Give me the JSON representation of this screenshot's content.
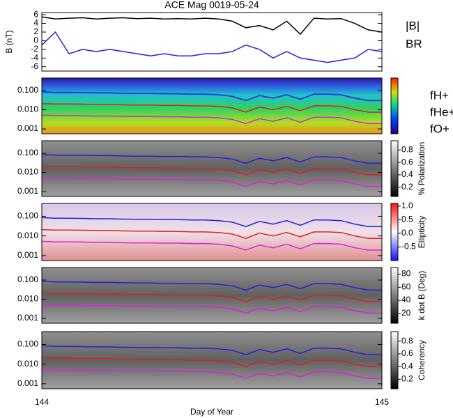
{
  "chart_data": [
    {
      "type": "line",
      "title": "ACE Mag 0019-05-24",
      "ylabel": "B (nT)",
      "x": [
        144.0,
        144.04,
        144.08,
        144.12,
        144.16,
        144.2,
        144.24,
        144.28,
        144.32,
        144.36,
        144.4,
        144.44,
        144.48,
        144.52,
        144.56,
        144.6,
        144.64,
        144.68,
        144.72,
        144.76,
        144.8,
        144.84,
        144.88,
        144.92,
        144.96,
        145.0
      ],
      "xlim": [
        144,
        145
      ],
      "ylim": [
        -7,
        6.5
      ],
      "yticks": [
        -6,
        -4,
        -2,
        0,
        2,
        4,
        6
      ],
      "series": [
        {
          "name": "|B|",
          "color": "#000000",
          "values": [
            5.5,
            5.0,
            5.2,
            5.3,
            5.0,
            5.2,
            5.3,
            5.1,
            5.2,
            5.0,
            5.1,
            5.0,
            5.2,
            5.0,
            4.5,
            3.0,
            3.5,
            2.5,
            4.5,
            1.5,
            5.2,
            5.0,
            5.1,
            4.0,
            2.5,
            2.0
          ]
        },
        {
          "name": "BR",
          "color": "#2020e0",
          "values": [
            -1.0,
            2.0,
            -3.0,
            -2.0,
            -2.5,
            -2.0,
            -2.5,
            -3.0,
            -3.5,
            -3.0,
            -3.5,
            -3.5,
            -3.0,
            -3.0,
            -2.5,
            -1.0,
            -2.0,
            -4.0,
            -2.5,
            -4.0,
            -4.5,
            -5.0,
            -4.5,
            -4.0,
            -2.0,
            -2.5
          ]
        }
      ]
    },
    {
      "type": "spectrogram",
      "log_y": true,
      "x": [
        144.0,
        144.04,
        144.08,
        144.12,
        144.16,
        144.2,
        144.24,
        144.28,
        144.32,
        144.36,
        144.4,
        144.44,
        144.48,
        144.52,
        144.56,
        144.6,
        144.64,
        144.68,
        144.72,
        144.76,
        144.8,
        144.84,
        144.88,
        144.92,
        144.96,
        145.0
      ],
      "xlim": [
        144,
        145
      ],
      "ylim": [
        0.00056,
        0.45
      ],
      "yticks": [
        0.001,
        {
          "value": 0.01,
          "label": "0.010"
        },
        {
          "value": 0.1,
          "label": "0.100"
        }
      ],
      "series": [
        {
          "name": "fH+",
          "color": "#2020e0",
          "values": [
            0.085,
            0.08,
            0.08,
            0.078,
            0.075,
            0.075,
            0.072,
            0.07,
            0.07,
            0.068,
            0.068,
            0.065,
            0.065,
            0.06,
            0.05,
            0.03,
            0.055,
            0.04,
            0.06,
            0.035,
            0.065,
            0.065,
            0.06,
            0.04,
            0.03,
            0.03
          ]
        },
        {
          "name": "fHe+",
          "color": "#e02020",
          "values": [
            0.021,
            0.02,
            0.02,
            0.0195,
            0.019,
            0.019,
            0.018,
            0.0175,
            0.0175,
            0.017,
            0.017,
            0.016,
            0.016,
            0.015,
            0.0125,
            0.0075,
            0.014,
            0.01,
            0.015,
            0.009,
            0.016,
            0.016,
            0.015,
            0.01,
            0.0075,
            0.0075
          ]
        },
        {
          "name": "fO+",
          "color": "#e020e0",
          "values": [
            0.0053,
            0.005,
            0.005,
            0.0049,
            0.0047,
            0.0047,
            0.0045,
            0.0044,
            0.0044,
            0.0043,
            0.0043,
            0.0041,
            0.0041,
            0.0038,
            0.0031,
            0.0019,
            0.0034,
            0.0025,
            0.0038,
            0.0022,
            0.0041,
            0.0041,
            0.0038,
            0.0025,
            0.0019,
            0.0019
          ]
        }
      ]
    },
    {
      "type": "spectrogram",
      "log_y": true,
      "x": [
        144.0,
        144.04,
        144.08,
        144.12,
        144.16,
        144.2,
        144.24,
        144.28,
        144.32,
        144.36,
        144.4,
        144.44,
        144.48,
        144.52,
        144.56,
        144.6,
        144.64,
        144.68,
        144.72,
        144.76,
        144.8,
        144.84,
        144.88,
        144.92,
        144.96,
        145.0
      ],
      "xlim": [
        144,
        145
      ],
      "ylim": [
        0.00056,
        0.45
      ],
      "yticks": [
        0.001,
        {
          "value": 0.01,
          "label": "0.010"
        },
        {
          "value": 0.1,
          "label": "0.100"
        }
      ],
      "colorbar": {
        "label": "% Polarization",
        "zlim": [
          0.05,
          0.95
        ],
        "ticks": [
          0.2,
          0.4,
          0.6,
          0.8
        ]
      },
      "series": [
        {
          "color": "#2020e0",
          "values": [
            0.085,
            0.08,
            0.08,
            0.078,
            0.075,
            0.075,
            0.072,
            0.07,
            0.07,
            0.068,
            0.068,
            0.065,
            0.065,
            0.06,
            0.05,
            0.03,
            0.055,
            0.04,
            0.06,
            0.035,
            0.065,
            0.065,
            0.06,
            0.04,
            0.03,
            0.03
          ]
        },
        {
          "color": "#e02020",
          "values": [
            0.021,
            0.02,
            0.02,
            0.0195,
            0.019,
            0.019,
            0.018,
            0.0175,
            0.0175,
            0.017,
            0.017,
            0.016,
            0.016,
            0.015,
            0.0125,
            0.0075,
            0.014,
            0.01,
            0.015,
            0.009,
            0.016,
            0.016,
            0.015,
            0.01,
            0.0075,
            0.0075
          ]
        },
        {
          "color": "#e020e0",
          "values": [
            0.0053,
            0.005,
            0.005,
            0.0049,
            0.0047,
            0.0047,
            0.0045,
            0.0044,
            0.0044,
            0.0043,
            0.0043,
            0.0041,
            0.0041,
            0.0038,
            0.0031,
            0.0019,
            0.0034,
            0.0025,
            0.0038,
            0.0022,
            0.0041,
            0.0041,
            0.0038,
            0.0025,
            0.0019,
            0.0019
          ]
        }
      ]
    },
    {
      "type": "spectrogram",
      "log_y": true,
      "x": [
        144.0,
        144.04,
        144.08,
        144.12,
        144.16,
        144.2,
        144.24,
        144.28,
        144.32,
        144.36,
        144.4,
        144.44,
        144.48,
        144.52,
        144.56,
        144.6,
        144.64,
        144.68,
        144.72,
        144.76,
        144.8,
        144.84,
        144.88,
        144.92,
        144.96,
        145.0
      ],
      "xlim": [
        144,
        145
      ],
      "ylim": [
        0.00056,
        0.45
      ],
      "yticks": [
        0.001,
        {
          "value": 0.01,
          "label": "0.010"
        },
        {
          "value": 0.1,
          "label": "0.100"
        }
      ],
      "colorbar": {
        "label": "Ellipticity",
        "zlim": [
          -1,
          1.1
        ],
        "ticks": [
          -0.5,
          {
            "value": 0,
            "label": "0.0"
          },
          {
            "value": 0.5,
            "label": "0.5"
          },
          {
            "value": 1,
            "label": "1.0"
          }
        ]
      },
      "series": [
        {
          "color": "#2020e0",
          "values": [
            0.085,
            0.08,
            0.08,
            0.078,
            0.075,
            0.075,
            0.072,
            0.07,
            0.07,
            0.068,
            0.068,
            0.065,
            0.065,
            0.06,
            0.05,
            0.03,
            0.055,
            0.04,
            0.06,
            0.035,
            0.065,
            0.065,
            0.06,
            0.04,
            0.03,
            0.03
          ]
        },
        {
          "color": "#e02020",
          "values": [
            0.021,
            0.02,
            0.02,
            0.0195,
            0.019,
            0.019,
            0.018,
            0.0175,
            0.0175,
            0.017,
            0.017,
            0.016,
            0.016,
            0.015,
            0.0125,
            0.0075,
            0.014,
            0.01,
            0.015,
            0.009,
            0.016,
            0.016,
            0.015,
            0.01,
            0.0075,
            0.0075
          ]
        },
        {
          "color": "#e020e0",
          "values": [
            0.0053,
            0.005,
            0.005,
            0.0049,
            0.0047,
            0.0047,
            0.0045,
            0.0044,
            0.0044,
            0.0043,
            0.0043,
            0.0041,
            0.0041,
            0.0038,
            0.0031,
            0.0019,
            0.0034,
            0.0025,
            0.0038,
            0.0022,
            0.0041,
            0.0041,
            0.0038,
            0.0025,
            0.0019,
            0.0019
          ]
        }
      ]
    },
    {
      "type": "spectrogram",
      "log_y": true,
      "x": [
        144.0,
        144.04,
        144.08,
        144.12,
        144.16,
        144.2,
        144.24,
        144.28,
        144.32,
        144.36,
        144.4,
        144.44,
        144.48,
        144.52,
        144.56,
        144.6,
        144.64,
        144.68,
        144.72,
        144.76,
        144.8,
        144.84,
        144.88,
        144.92,
        144.96,
        145.0
      ],
      "xlim": [
        144,
        145
      ],
      "ylim": [
        0.00056,
        0.45
      ],
      "yticks": [
        0.001,
        {
          "value": 0.01,
          "label": "0.010"
        },
        {
          "value": 0.1,
          "label": "0.100"
        }
      ],
      "colorbar": {
        "label": "k dot B (Deg)",
        "zlim": [
          5,
          90
        ],
        "ticks": [
          20,
          40,
          60,
          80
        ]
      },
      "series": [
        {
          "color": "#2020e0",
          "values": [
            0.085,
            0.08,
            0.08,
            0.078,
            0.075,
            0.075,
            0.072,
            0.07,
            0.07,
            0.068,
            0.068,
            0.065,
            0.065,
            0.06,
            0.05,
            0.03,
            0.055,
            0.04,
            0.06,
            0.035,
            0.065,
            0.065,
            0.06,
            0.04,
            0.03,
            0.03
          ]
        },
        {
          "color": "#e02020",
          "values": [
            0.021,
            0.02,
            0.02,
            0.0195,
            0.019,
            0.019,
            0.018,
            0.0175,
            0.0175,
            0.017,
            0.017,
            0.016,
            0.016,
            0.015,
            0.0125,
            0.0075,
            0.014,
            0.01,
            0.015,
            0.009,
            0.016,
            0.016,
            0.015,
            0.01,
            0.0075,
            0.0075
          ]
        },
        {
          "color": "#e020e0",
          "values": [
            0.0053,
            0.005,
            0.005,
            0.0049,
            0.0047,
            0.0047,
            0.0045,
            0.0044,
            0.0044,
            0.0043,
            0.0043,
            0.0041,
            0.0041,
            0.0038,
            0.0031,
            0.0019,
            0.0034,
            0.0025,
            0.0038,
            0.0022,
            0.0041,
            0.0041,
            0.0038,
            0.0025,
            0.0019,
            0.0019
          ]
        }
      ]
    },
    {
      "type": "spectrogram",
      "log_y": true,
      "x": [
        144.0,
        144.04,
        144.08,
        144.12,
        144.16,
        144.2,
        144.24,
        144.28,
        144.32,
        144.36,
        144.4,
        144.44,
        144.48,
        144.52,
        144.56,
        144.6,
        144.64,
        144.68,
        144.72,
        144.76,
        144.8,
        144.84,
        144.88,
        144.92,
        144.96,
        145.0
      ],
      "xlim": [
        144,
        145
      ],
      "xticks": [
        144,
        145
      ],
      "xlabel": "Day of Year",
      "ylim": [
        0.00056,
        0.45
      ],
      "yticks": [
        0.001,
        {
          "value": 0.01,
          "label": "0.010"
        },
        {
          "value": 0.1,
          "label": "0.100"
        }
      ],
      "colorbar": {
        "label": "Coherency",
        "zlim": [
          0.05,
          0.95
        ],
        "ticks": [
          0.2,
          0.4,
          0.6,
          0.8
        ]
      },
      "series": [
        {
          "color": "#2020e0",
          "values": [
            0.085,
            0.08,
            0.08,
            0.078,
            0.075,
            0.075,
            0.072,
            0.07,
            0.07,
            0.068,
            0.068,
            0.065,
            0.065,
            0.06,
            0.05,
            0.03,
            0.055,
            0.04,
            0.06,
            0.035,
            0.065,
            0.065,
            0.06,
            0.04,
            0.03,
            0.03
          ]
        },
        {
          "color": "#e02020",
          "values": [
            0.021,
            0.02,
            0.02,
            0.0195,
            0.019,
            0.019,
            0.018,
            0.0175,
            0.0175,
            0.017,
            0.017,
            0.016,
            0.016,
            0.015,
            0.0125,
            0.0075,
            0.014,
            0.01,
            0.015,
            0.009,
            0.016,
            0.016,
            0.015,
            0.01,
            0.0075,
            0.0075
          ]
        },
        {
          "color": "#e020e0",
          "values": [
            0.0053,
            0.005,
            0.005,
            0.0049,
            0.0047,
            0.0047,
            0.0045,
            0.0044,
            0.0044,
            0.0043,
            0.0043,
            0.0041,
            0.0041,
            0.0038,
            0.0031,
            0.0019,
            0.0034,
            0.0025,
            0.0038,
            0.0022,
            0.0041,
            0.0041,
            0.0038,
            0.0025,
            0.0019,
            0.0019
          ]
        }
      ]
    }
  ]
}
